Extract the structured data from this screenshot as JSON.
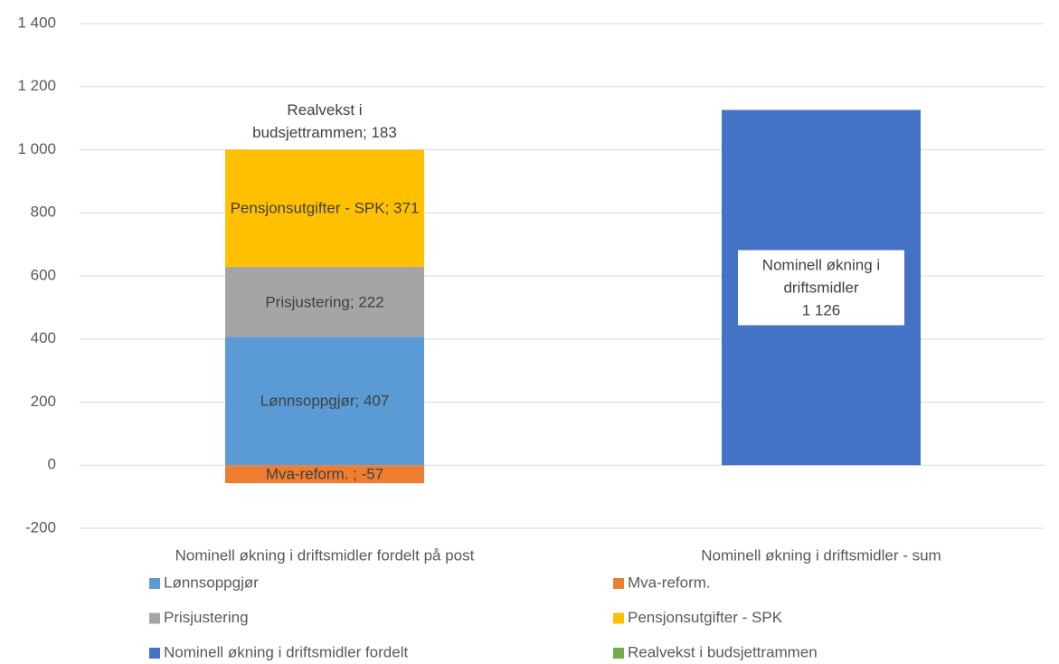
{
  "chart_data": {
    "type": "stacked-bar",
    "categories": [
      "Nominell økning i driftsmidler fordelt på post",
      "Nominell økning i driftsmidler - sum"
    ],
    "series": [
      {
        "name": "Lønnsoppgjør",
        "color": "#5b9bd5",
        "values": [
          407,
          null
        ],
        "value_labels": [
          "Lønnsoppgjør; 407",
          null
        ]
      },
      {
        "name": "Mva-reform.",
        "color": "#ed7d31",
        "values": [
          -57,
          null
        ],
        "value_labels": [
          "Mva-reform. ; -57",
          null
        ]
      },
      {
        "name": "Prisjustering",
        "color": "#a5a5a5",
        "values": [
          222,
          null
        ],
        "value_labels": [
          "Prisjustering; 222",
          null
        ]
      },
      {
        "name": "Pensjonsutgifter - SPK",
        "color": "#ffc000",
        "values": [
          371,
          null
        ],
        "value_labels": [
          "Pensjonsutgifter - SPK; 371",
          null
        ]
      },
      {
        "name": "Nominell økning i driftsmidler fordelt",
        "color": "#4472c4",
        "values": [
          null,
          1126
        ],
        "value_labels": [
          null,
          "Nominell økning i driftsmidler\n1 126"
        ]
      },
      {
        "name": "Realvekst i budsjettrammen",
        "color": "#70ad47",
        "values": [
          183,
          null
        ],
        "value_labels": [
          "Realvekst i budsjettrammen; 183",
          null
        ]
      }
    ],
    "ylim": [
      -200,
      1400
    ],
    "yticks": [
      -200,
      0,
      200,
      400,
      600,
      800,
      {
        "value": 1000,
        "label": "1 000"
      },
      {
        "value": 1200,
        "label": "1 200"
      },
      {
        "value": 1400,
        "label": "1 400"
      }
    ],
    "grid": true
  }
}
